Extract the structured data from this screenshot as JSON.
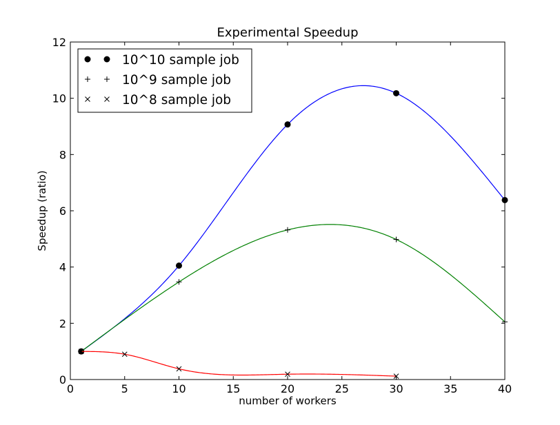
{
  "chart_data": {
    "type": "line",
    "title": "Experimental Speedup",
    "xlabel": "number of workers",
    "ylabel": "Speedup (ratio)",
    "xlim": [
      0,
      40
    ],
    "ylim": [
      0,
      12
    ],
    "xticks": [
      0,
      5,
      10,
      15,
      20,
      25,
      30,
      35,
      40
    ],
    "yticks": [
      0,
      2,
      4,
      6,
      8,
      10,
      12
    ],
    "grid": false,
    "legend_position": "top-left",
    "series": [
      {
        "name": "10^10 sample job",
        "marker": "circle",
        "color": "#0000ff",
        "x": [
          1,
          10,
          20,
          30,
          40
        ],
        "y": [
          1.0,
          4.05,
          9.07,
          10.18,
          6.38
        ]
      },
      {
        "name": "10^9 sample job",
        "marker": "plus",
        "color": "#008000",
        "x": [
          1,
          10,
          20,
          30,
          40
        ],
        "y": [
          1.0,
          3.47,
          5.32,
          4.98,
          2.05
        ]
      },
      {
        "name": "10^8 sample job",
        "marker": "x",
        "color": "#ff0000",
        "x": [
          1,
          5,
          10,
          20,
          30
        ],
        "y": [
          1.0,
          0.9,
          0.38,
          0.19,
          0.12
        ]
      }
    ]
  }
}
